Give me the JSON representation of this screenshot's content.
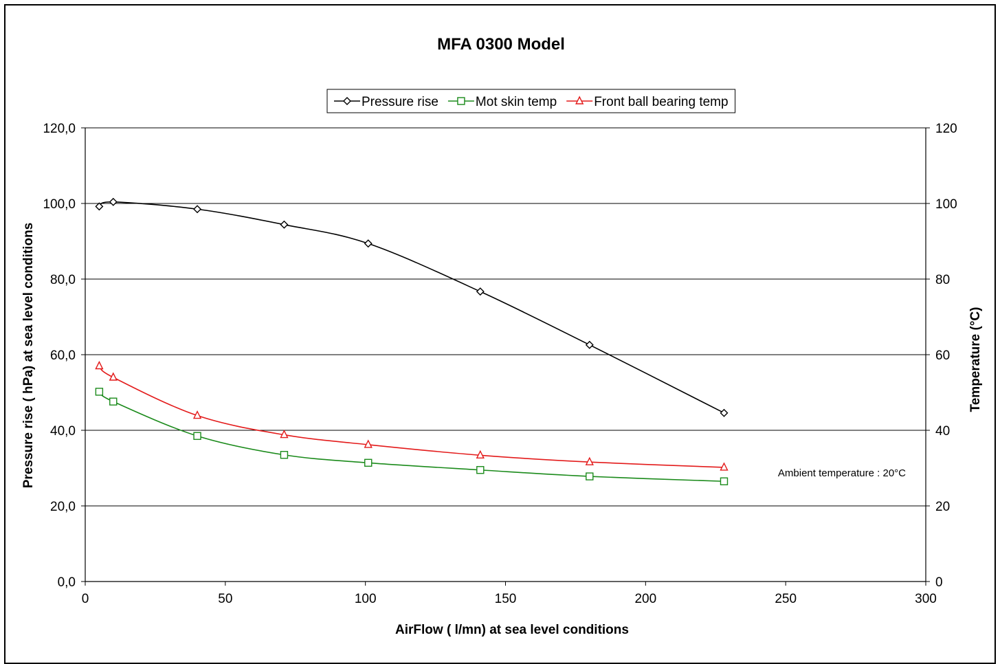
{
  "chart_data": {
    "type": "line",
    "title": "MFA 0300 Model",
    "xlabel": "AirFlow ( l/mn) at sea level conditions",
    "ylabel_left": "Pressure rise ( hPa) at sea level conditions",
    "ylabel_right": "Temperature (°C)",
    "xlim": [
      0,
      300
    ],
    "ylim_left": [
      0,
      120
    ],
    "ylim_right": [
      0,
      120
    ],
    "x_ticks": [
      "0",
      "50",
      "100",
      "150",
      "200",
      "250",
      "300"
    ],
    "y_ticks_left": [
      "0,0",
      "20,0",
      "40,0",
      "60,0",
      "80,0",
      "100,0",
      "120,0"
    ],
    "y_ticks_right": [
      "0",
      "20",
      "40",
      "60",
      "80",
      "100",
      "120"
    ],
    "grid": "horizontal",
    "legend_position": "top-center",
    "annotation": "Ambient temperature : 20°C",
    "series": [
      {
        "name": "Pressure rise",
        "axis": "left",
        "color": "#000000",
        "marker": "diamond",
        "x": [
          5,
          10,
          40,
          71,
          101,
          141,
          180,
          228
        ],
        "y": [
          99.2,
          100.4,
          98.5,
          94.4,
          89.4,
          76.7,
          62.6,
          44.6
        ]
      },
      {
        "name": "Mot skin temp",
        "axis": "right",
        "color": "#1a8a1a",
        "marker": "square",
        "x": [
          5,
          10,
          40,
          71,
          101,
          141,
          180,
          228
        ],
        "y": [
          50.2,
          47.6,
          38.5,
          33.5,
          31.4,
          29.5,
          27.8,
          26.5
        ]
      },
      {
        "name": "Front ball bearing temp",
        "axis": "right",
        "color": "#e31a1a",
        "marker": "triangle",
        "x": [
          5,
          10,
          40,
          71,
          101,
          141,
          180,
          228
        ],
        "y": [
          57.0,
          54.0,
          43.9,
          38.8,
          36.2,
          33.4,
          31.6,
          30.2
        ]
      }
    ]
  }
}
